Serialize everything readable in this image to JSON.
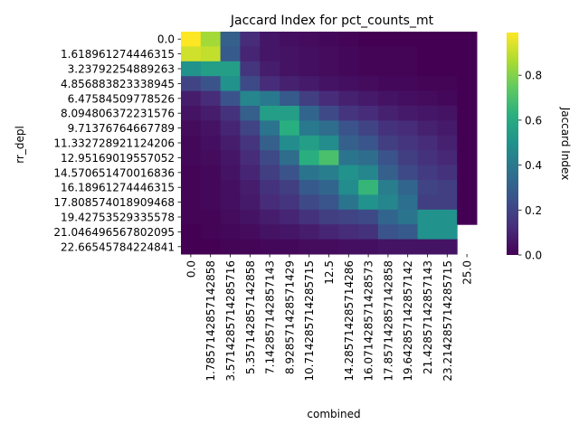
{
  "chart_data": {
    "type": "heatmap",
    "title": "Jaccard Index for pct_counts_mt",
    "xlabel": "combined",
    "ylabel": "rr_depl",
    "colorbar_label": "Jaccard Index",
    "colormap": "viridis",
    "vmin": 0.0,
    "vmax": 0.99,
    "colorbar_ticks": [
      "0.0",
      "0.2",
      "0.4",
      "0.6",
      "0.8"
    ],
    "colorbar_tick_values": [
      0.0,
      0.2,
      0.4,
      0.6,
      0.8
    ],
    "y_categories": [
      "0.0",
      "1.618961274446315",
      "3.23792254889263",
      "4.856883823338945",
      "6.47584509778526",
      "8.094806372231576",
      "9.71376764667789",
      "11.332728921124206",
      "12.95169019557052",
      "14.570651470016836",
      "16.18961274446315",
      "17.808574018909468",
      "19.42753529335578",
      "21.046496567802095",
      "22.66545784224841"
    ],
    "x_categories": [
      "0.0",
      "1.7857142857142858",
      "3.5714285714285716",
      "5.357142857142858",
      "7.142857142857143",
      "8.928571428571429",
      "10.714285714285715",
      "12.5",
      "14.285714285714286",
      "16.071428571428573",
      "17.857142857142858",
      "19.642857142857142",
      "21.42857142857143",
      "23.214285714285715",
      "25.0"
    ],
    "values": [
      [
        0.99,
        0.85,
        0.3,
        0.12,
        0.06,
        0.04,
        0.03,
        0.02,
        0.01,
        0.0,
        0.0,
        0.0,
        0.0,
        0.0,
        0.0
      ],
      [
        0.92,
        0.9,
        0.28,
        0.1,
        0.06,
        0.05,
        0.04,
        0.03,
        0.02,
        0.01,
        0.01,
        0.01,
        0.0,
        0.0,
        0.0
      ],
      [
        0.5,
        0.55,
        0.55,
        0.15,
        0.08,
        0.05,
        0.04,
        0.03,
        0.02,
        0.01,
        0.01,
        0.01,
        0.0,
        0.0,
        0.0
      ],
      [
        0.2,
        0.25,
        0.5,
        0.22,
        0.12,
        0.09,
        0.07,
        0.05,
        0.04,
        0.03,
        0.02,
        0.02,
        0.01,
        0.01,
        0.0
      ],
      [
        0.08,
        0.12,
        0.25,
        0.45,
        0.4,
        0.28,
        0.18,
        0.12,
        0.09,
        0.07,
        0.05,
        0.04,
        0.03,
        0.02,
        0.0
      ],
      [
        0.05,
        0.08,
        0.14,
        0.3,
        0.55,
        0.55,
        0.32,
        0.22,
        0.15,
        0.12,
        0.09,
        0.07,
        0.06,
        0.05,
        0.0
      ],
      [
        0.03,
        0.05,
        0.1,
        0.2,
        0.38,
        0.62,
        0.4,
        0.35,
        0.25,
        0.2,
        0.14,
        0.12,
        0.09,
        0.07,
        0.0
      ],
      [
        0.02,
        0.04,
        0.08,
        0.15,
        0.3,
        0.48,
        0.55,
        0.48,
        0.3,
        0.26,
        0.18,
        0.15,
        0.12,
        0.09,
        0.0
      ],
      [
        0.02,
        0.03,
        0.06,
        0.12,
        0.22,
        0.35,
        0.62,
        0.7,
        0.38,
        0.35,
        0.25,
        0.18,
        0.14,
        0.11,
        0.0
      ],
      [
        0.01,
        0.02,
        0.05,
        0.1,
        0.18,
        0.25,
        0.38,
        0.42,
        0.5,
        0.45,
        0.3,
        0.22,
        0.17,
        0.14,
        0.0
      ],
      [
        0.01,
        0.02,
        0.04,
        0.08,
        0.14,
        0.18,
        0.28,
        0.32,
        0.48,
        0.65,
        0.42,
        0.32,
        0.2,
        0.18,
        0.0
      ],
      [
        0.01,
        0.02,
        0.04,
        0.07,
        0.12,
        0.15,
        0.22,
        0.26,
        0.38,
        0.5,
        0.45,
        0.36,
        0.18,
        0.18,
        0.0
      ],
      [
        0.01,
        0.01,
        0.03,
        0.05,
        0.08,
        0.1,
        0.14,
        0.18,
        0.2,
        0.22,
        0.32,
        0.38,
        0.5,
        0.5,
        0.0
      ],
      [
        0.0,
        0.01,
        0.02,
        0.03,
        0.05,
        0.06,
        0.08,
        0.1,
        0.12,
        0.14,
        0.25,
        0.28,
        0.5,
        0.5,
        null
      ],
      [
        0.0,
        0.0,
        0.01,
        0.01,
        0.02,
        0.02,
        0.03,
        0.03,
        0.04,
        0.04,
        0.05,
        0.05,
        0.05,
        0.05,
        null
      ]
    ]
  }
}
